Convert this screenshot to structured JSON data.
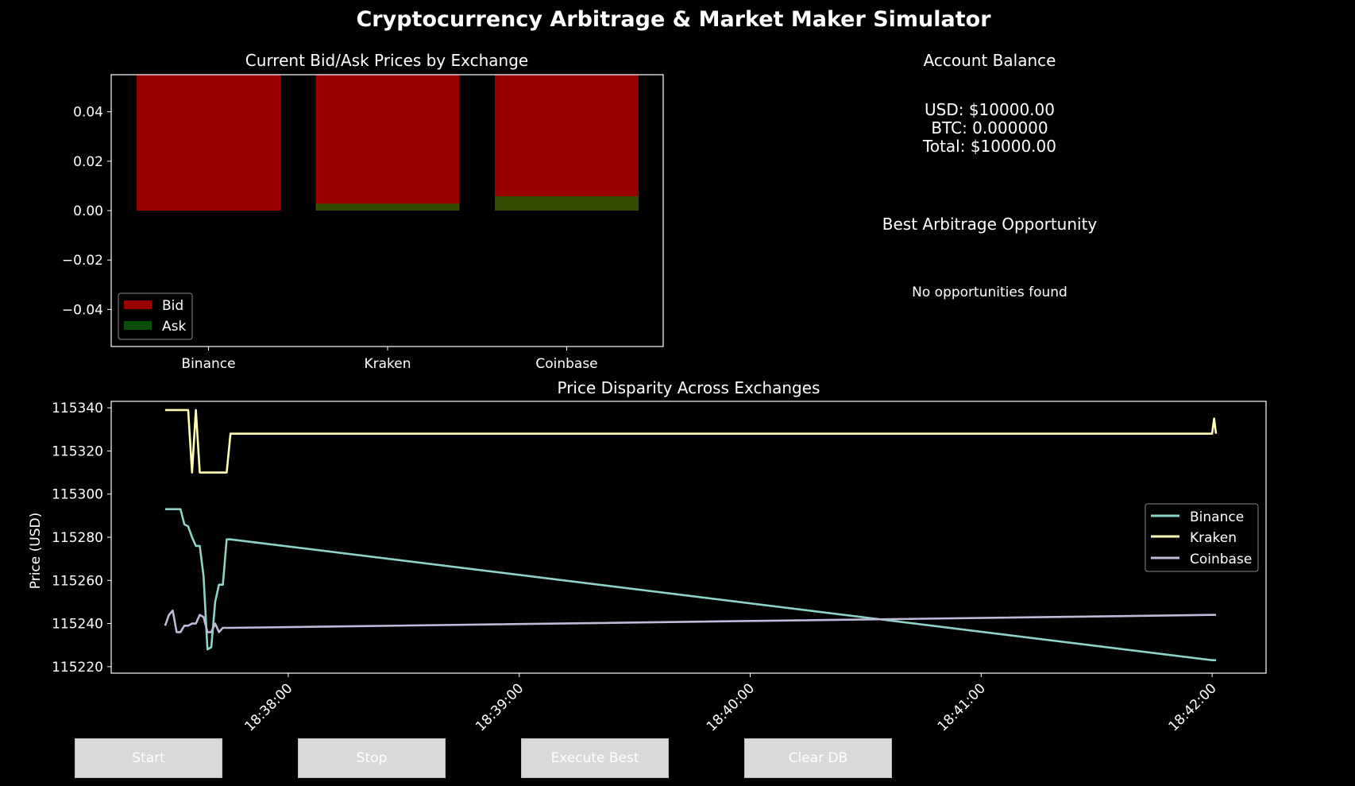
{
  "title": "Cryptocurrency Arbitrage & Market Maker Simulator",
  "colors": {
    "bid": "#990000",
    "ask": "#334d00",
    "ask_legend": "#0b4d0b",
    "binance": "#8dd3c7",
    "kraken": "#ffffb3",
    "coinbase": "#bebada"
  },
  "account": {
    "heading": "Account Balance",
    "usd": "USD: $10000.00",
    "btc": "BTC: 0.000000",
    "total": "Total: $10000.00"
  },
  "arbitrage": {
    "heading": "Best Arbitrage Opportunity",
    "message": "No opportunities found"
  },
  "buttons": [
    "Start",
    "Stop",
    "Execute Best",
    "Clear DB"
  ],
  "chart_data": [
    {
      "type": "bar",
      "title": "Current Bid/Ask Prices by Exchange",
      "xlabel": "",
      "ylabel": "",
      "categories": [
        "Binance",
        "Kraken",
        "Coinbase"
      ],
      "series": [
        {
          "name": "Bid",
          "values": [
            0.055,
            0.055,
            0.055
          ]
        },
        {
          "name": "Ask",
          "values": [
            0,
            0.0028,
            0.0058
          ]
        }
      ],
      "ylim": [
        -0.055,
        0.055
      ],
      "yticks": [
        0.04,
        0.02,
        0.0,
        -0.02,
        -0.04
      ],
      "ytick_labels": [
        "0.04",
        "0.02",
        "0.00",
        "−0.02",
        "−0.04"
      ],
      "legend": "lower-left"
    },
    {
      "type": "line",
      "title": "Price Disparity Across Exchanges",
      "xlabel": "",
      "ylabel": "Price (USD)",
      "xlim": [
        "18:37:14",
        "18:42:14"
      ],
      "ylim": [
        115217,
        115343
      ],
      "yticks": [
        115220,
        115240,
        115260,
        115280,
        115300,
        115320,
        115340
      ],
      "xticks": [
        "18:38:00",
        "18:39:00",
        "18:40:00",
        "18:41:00",
        "18:42:00"
      ],
      "legend": "center-right",
      "series": [
        {
          "name": "Binance",
          "x": [
            "18:37:28",
            "18:37:32",
            "18:37:33",
            "18:37:34",
            "18:37:35",
            "18:37:36",
            "18:37:37",
            "18:37:38",
            "18:37:39",
            "18:37:40",
            "18:37:41",
            "18:37:42",
            "18:37:43",
            "18:37:44",
            "18:37:45",
            "18:42:00",
            "18:42:01"
          ],
          "y": [
            115293,
            115293,
            115286,
            115285,
            115280,
            115276,
            115276,
            115262,
            115228,
            115229,
            115250,
            115258,
            115258,
            115279,
            115279,
            115223,
            115223
          ]
        },
        {
          "name": "Kraken",
          "x": [
            "18:37:28",
            "18:37:34",
            "18:37:35",
            "18:37:36",
            "18:37:37",
            "18:37:38",
            "18:37:41",
            "18:37:44",
            "18:37:45",
            "18:42:00",
            "18:42:00.5",
            "18:42:01"
          ],
          "y": [
            115339,
            115339,
            115310,
            115339,
            115310,
            115310,
            115310,
            115310,
            115328,
            115328,
            115335,
            115328
          ]
        },
        {
          "name": "Coinbase",
          "x": [
            "18:37:28",
            "18:37:29",
            "18:37:30",
            "18:37:31",
            "18:37:32",
            "18:37:33",
            "18:37:34",
            "18:37:35",
            "18:37:36",
            "18:37:37",
            "18:37:38",
            "18:37:39",
            "18:37:40",
            "18:37:41",
            "18:37:42",
            "18:37:43",
            "18:37:44",
            "18:37:45",
            "18:42:00",
            "18:42:01"
          ],
          "y": [
            115239,
            115244,
            115246,
            115236,
            115236,
            115239,
            115239,
            115240,
            115240,
            115244,
            115243,
            115236,
            115236,
            115240,
            115236,
            115238,
            115238,
            115238,
            115244,
            115244
          ]
        }
      ]
    }
  ]
}
